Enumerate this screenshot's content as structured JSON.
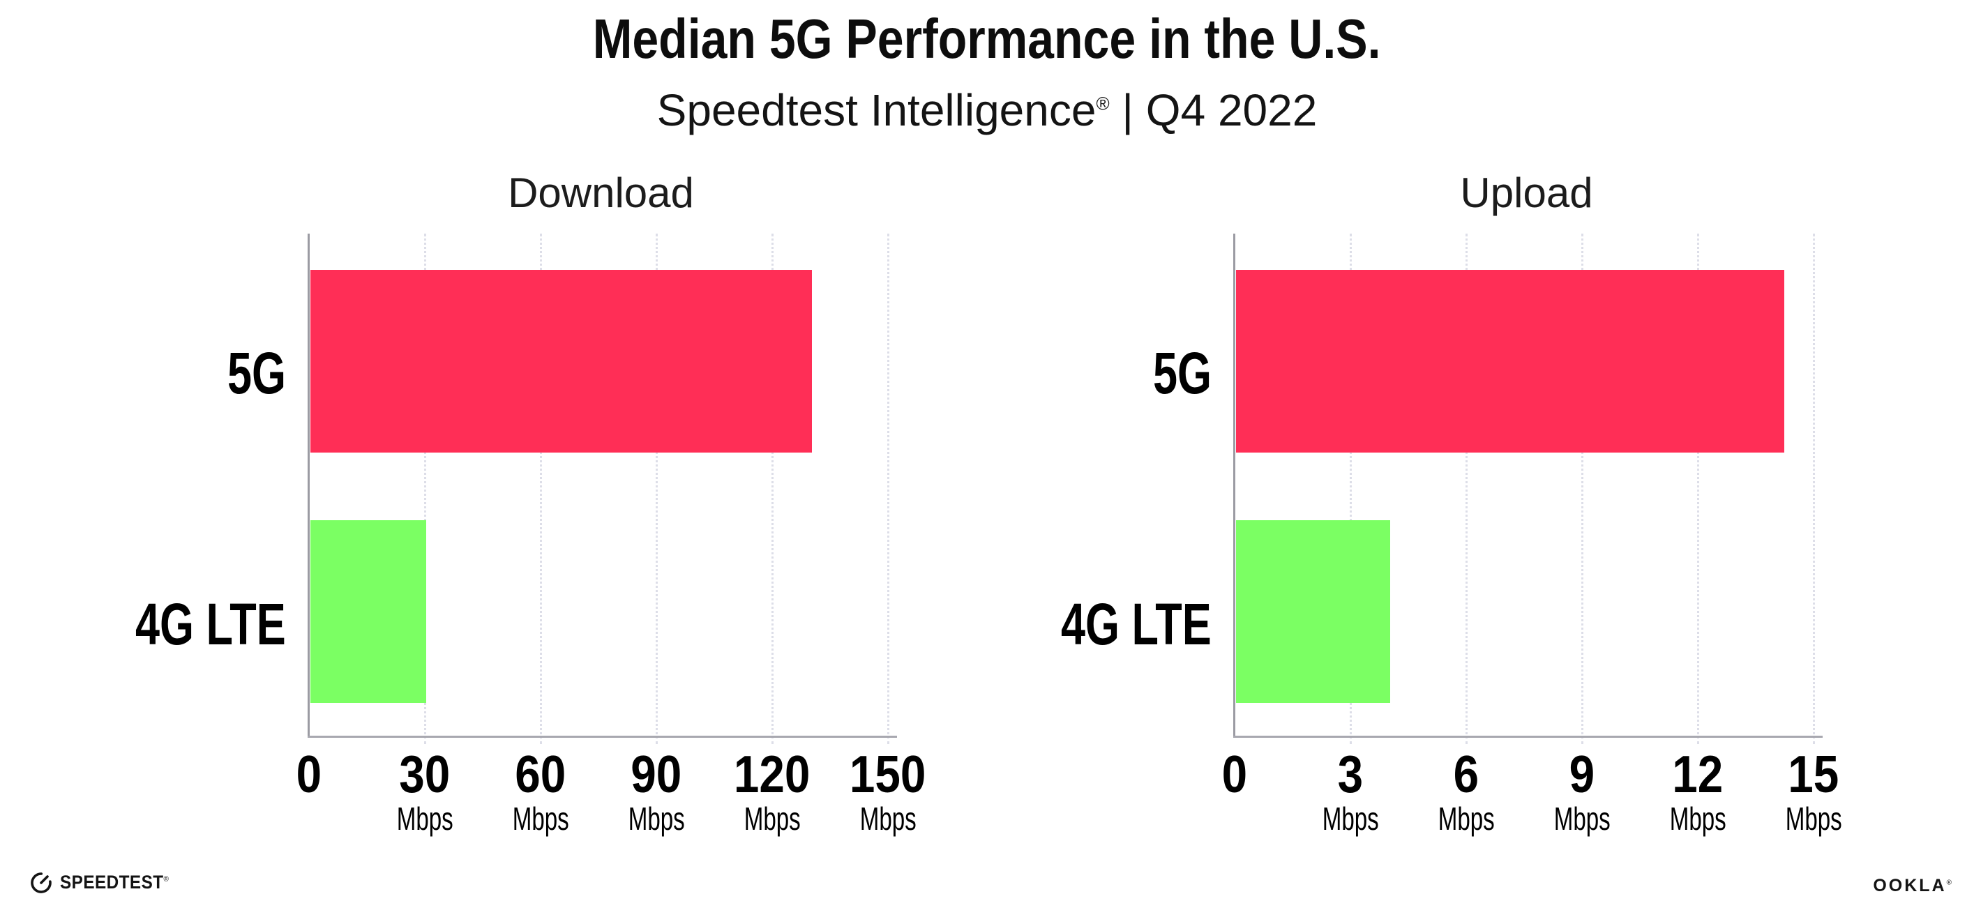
{
  "header": {
    "title": "Median 5G Performance in the U.S.",
    "subtitle_brand": "Speedtest Intelligence",
    "subtitle_reg": "®",
    "subtitle_rest": " | Q4 2022"
  },
  "chart_data": {
    "type": "bar",
    "orientation": "horizontal",
    "title": "Median 5G Performance in the U.S.",
    "subtitle": "Speedtest Intelligence® | Q4 2022",
    "unit": "Mbps",
    "categories": [
      "5G",
      "4G LTE"
    ],
    "series_colors": {
      "5G": "#ff2e56",
      "4G LTE": "#7bff63"
    },
    "grid": "dotted-vertical",
    "charts": [
      {
        "name": "Download",
        "values": {
          "5G": 130,
          "4G LTE": 30
        },
        "ticks": [
          0,
          30,
          60,
          90,
          120,
          150
        ],
        "tick_step": 30,
        "xlim": [
          0,
          152
        ],
        "tick_unit_label": "Mbps"
      },
      {
        "name": "Upload",
        "values": {
          "5G": 14.2,
          "4G LTE": 4
        },
        "ticks": [
          0,
          3,
          6,
          9,
          12,
          15
        ],
        "tick_step": 3,
        "xlim": [
          0,
          15.2
        ],
        "tick_unit_label": "Mbps"
      }
    ]
  },
  "footer": {
    "speedtest_label": "SPEEDTEST",
    "speedtest_mark": "®",
    "gauge_icon": "speedtest-gauge-icon",
    "ookla_label": "OOKLA",
    "ookla_mark": "®"
  }
}
